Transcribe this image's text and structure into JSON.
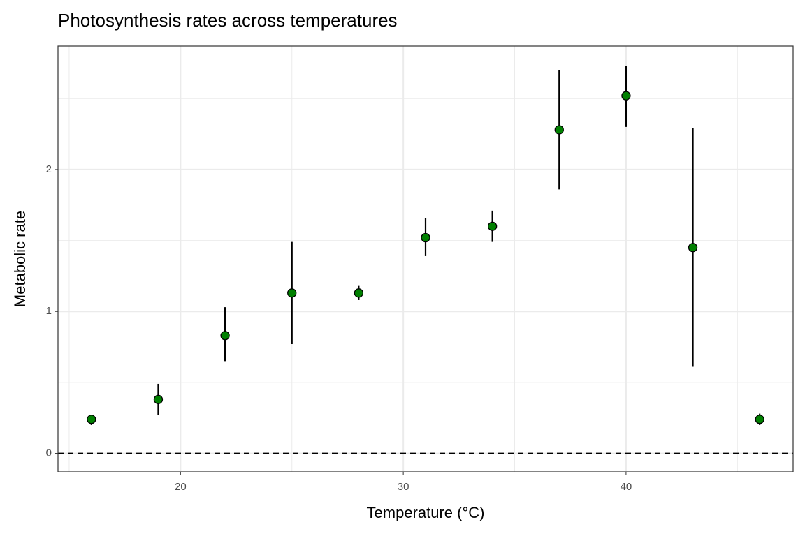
{
  "chart_data": {
    "type": "errorbar",
    "title": "Photosynthesis rates across temperatures",
    "x_label": "Temperature (°C)",
    "y_label": "Metabolic rate",
    "x": [
      16,
      19,
      22,
      25,
      28,
      31,
      34,
      37,
      40,
      43,
      46
    ],
    "values": [
      0.24,
      0.38,
      0.83,
      1.13,
      1.13,
      1.52,
      1.6,
      2.28,
      2.52,
      1.45,
      0.24
    ],
    "lower": [
      0.2,
      0.27,
      0.65,
      0.77,
      1.08,
      1.39,
      1.49,
      1.86,
      2.3,
      0.61,
      0.2
    ],
    "upper": [
      0.27,
      0.49,
      1.03,
      1.49,
      1.18,
      1.66,
      1.71,
      2.7,
      2.73,
      2.29,
      0.28
    ],
    "color": "#008000",
    "xlim": [
      14.5,
      47.5
    ],
    "ylim": [
      -0.13,
      2.87
    ],
    "xticks": [
      20,
      30,
      40
    ],
    "yticks": [
      0,
      1,
      2
    ],
    "x_minor_grid": [
      15,
      25,
      35,
      45
    ],
    "y_minor_grid": [
      0.5,
      1.5,
      2.5
    ],
    "grid": true,
    "hline": 0
  }
}
